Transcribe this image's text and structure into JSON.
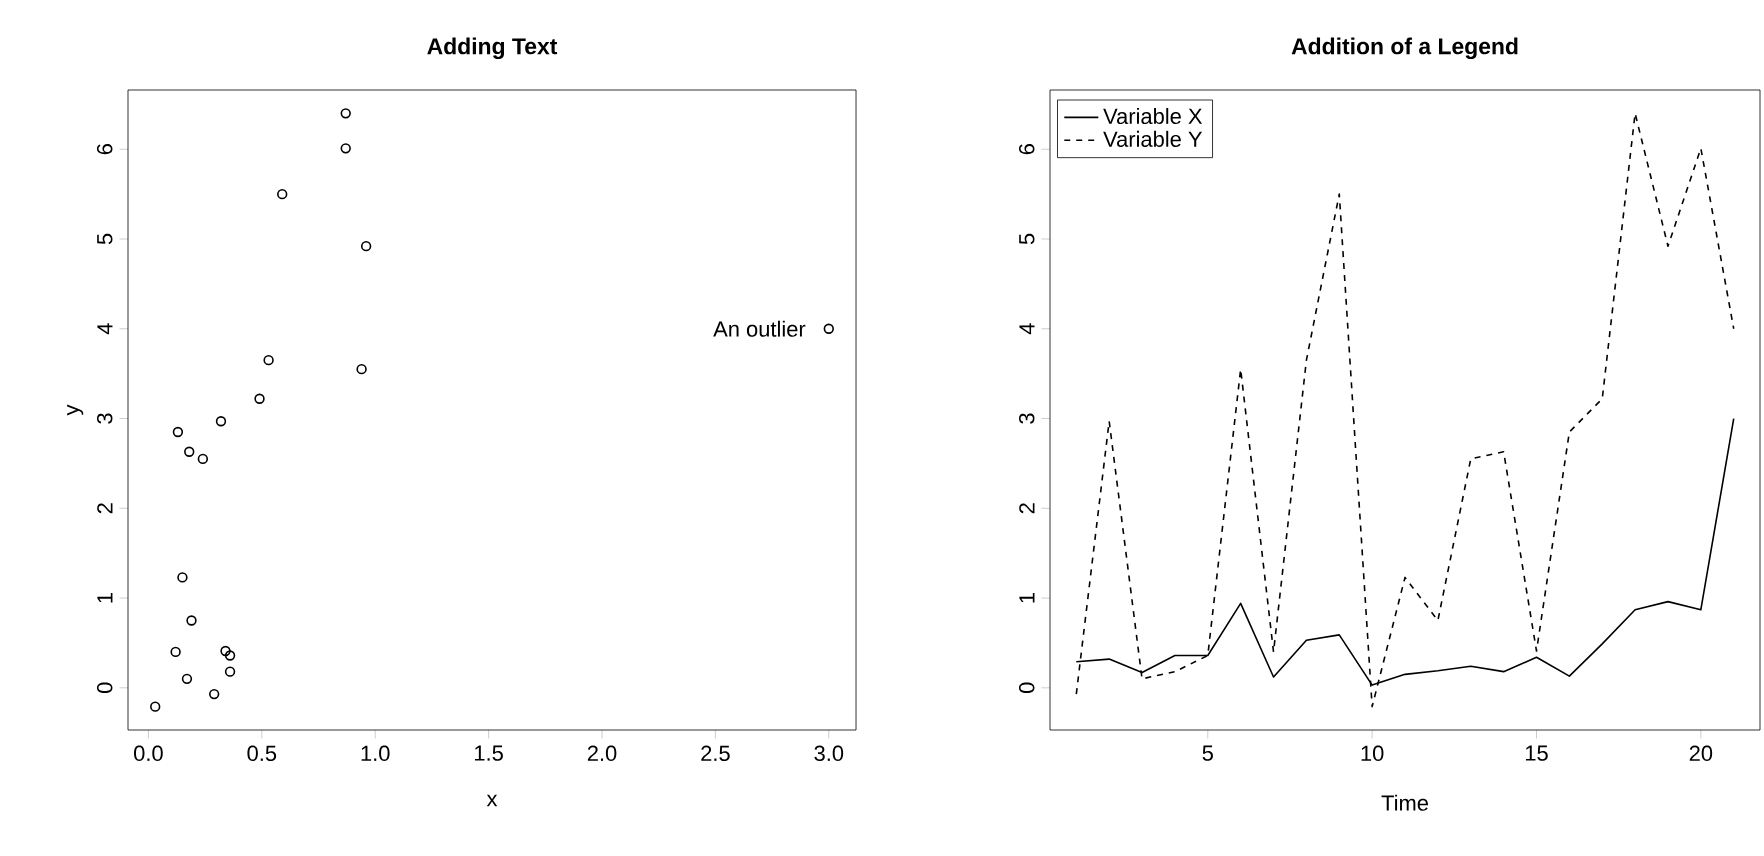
{
  "chart_data": [
    {
      "type": "scatter",
      "title": "Adding Text",
      "xlabel": "x",
      "ylabel": "y",
      "marker": "circle",
      "color": "#000000",
      "x": [
        0.29,
        0.32,
        0.17,
        0.36,
        0.36,
        0.94,
        0.12,
        0.53,
        0.59,
        0.03,
        0.15,
        0.19,
        0.24,
        0.18,
        0.34,
        0.13,
        0.49,
        0.87,
        0.96,
        0.87,
        3.0
      ],
      "values": [
        -0.07,
        2.97,
        0.1,
        0.18,
        0.36,
        3.55,
        0.4,
        3.65,
        5.5,
        -0.21,
        1.23,
        0.75,
        2.55,
        2.63,
        0.41,
        2.85,
        3.22,
        6.4,
        4.92,
        6.01,
        4.0
      ],
      "xlim": [
        -0.09,
        3.12
      ],
      "ylim": [
        -0.47,
        6.66
      ],
      "xticks": [
        {
          "value": 0,
          "label": "0.0"
        },
        0.5,
        {
          "value": 1,
          "label": "1.0"
        },
        1.5,
        {
          "value": 2,
          "label": "2.0"
        },
        2.5,
        {
          "value": 3,
          "label": "3.0"
        }
      ],
      "yticks": [
        0,
        1,
        2,
        3,
        4,
        5,
        6
      ],
      "annotations": [
        {
          "text": "An outlier",
          "x": 3.0,
          "y": 4.0
        }
      ]
    },
    {
      "type": "line",
      "title": "Addition of a Legend",
      "xlabel": "Time",
      "legend": "top left",
      "x": [
        1,
        2,
        3,
        4,
        5,
        6,
        7,
        8,
        9,
        10,
        11,
        12,
        13,
        14,
        15,
        16,
        17,
        18,
        19,
        20,
        21
      ],
      "series": [
        {
          "name": "Variable X",
          "color": "#000000",
          "line_style": "solid",
          "values": [
            0.29,
            0.32,
            0.17,
            0.36,
            0.36,
            0.94,
            0.12,
            0.53,
            0.59,
            0.03,
            0.15,
            0.19,
            0.24,
            0.18,
            0.34,
            0.13,
            0.49,
            0.87,
            0.96,
            0.87,
            3.0
          ]
        },
        {
          "name": "Variable Y",
          "color": "#000000",
          "line_style": "dashed",
          "values": [
            -0.07,
            2.97,
            0.1,
            0.18,
            0.36,
            3.55,
            0.4,
            3.65,
            5.5,
            -0.21,
            1.23,
            0.75,
            2.55,
            2.63,
            0.41,
            2.85,
            3.22,
            6.4,
            4.92,
            6.01,
            4.0
          ]
        }
      ],
      "xlim": [
        0.2,
        21.8
      ],
      "ylim": [
        -0.47,
        6.66
      ],
      "xticks": [
        5,
        10,
        15,
        20
      ],
      "yticks": [
        0,
        1,
        2,
        3,
        4,
        5,
        6
      ]
    }
  ]
}
